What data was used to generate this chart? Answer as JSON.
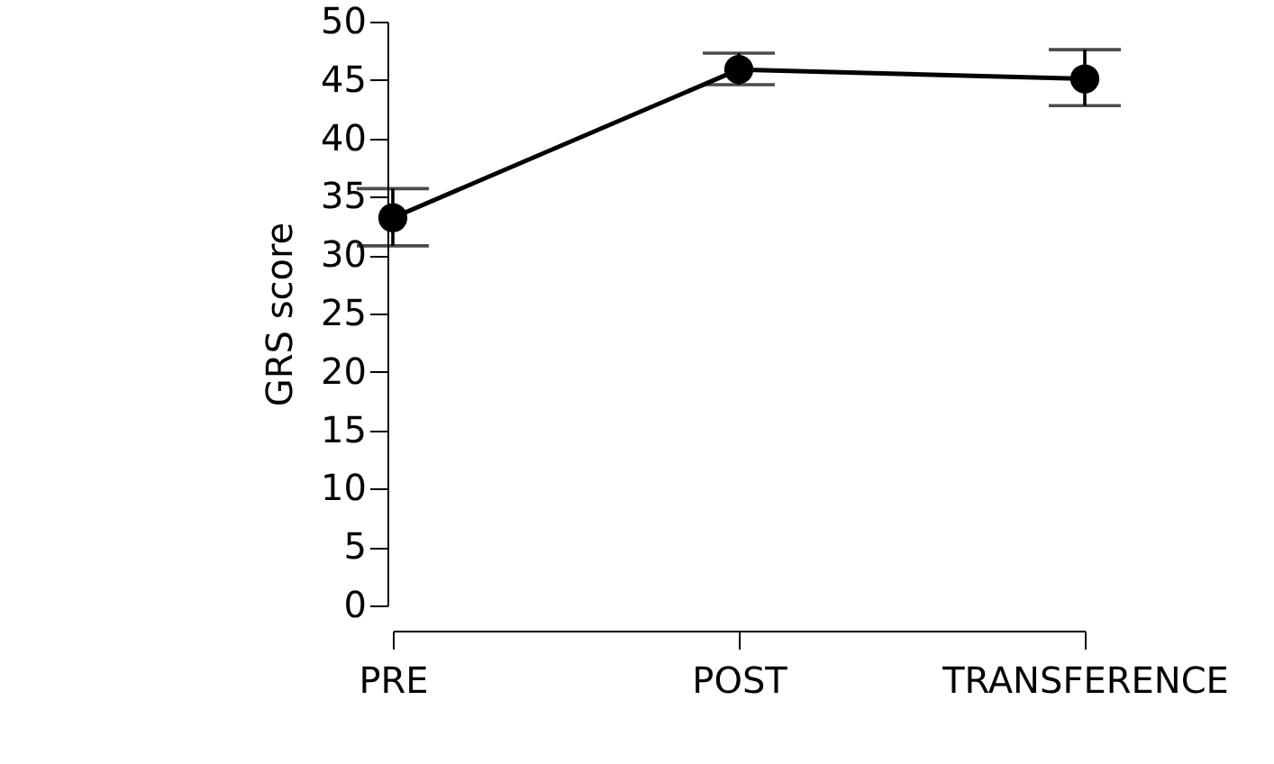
{
  "chart_data": {
    "type": "line",
    "ylabel": "GRS score",
    "categories": [
      "PRE",
      "POST",
      "TRANSFERENCE"
    ],
    "values": [
      33.2,
      45.9,
      45.1
    ],
    "errors": [
      [
        30.8,
        35.7
      ],
      [
        44.6,
        47.3
      ],
      [
        42.8,
        47.6
      ]
    ],
    "color": "#000000",
    "marker": "circle",
    "line_style": "solid",
    "grid": false,
    "ylim": [
      0,
      50
    ],
    "yticks": [
      0,
      5,
      10,
      15,
      20,
      25,
      30,
      35,
      40,
      45,
      50
    ]
  }
}
